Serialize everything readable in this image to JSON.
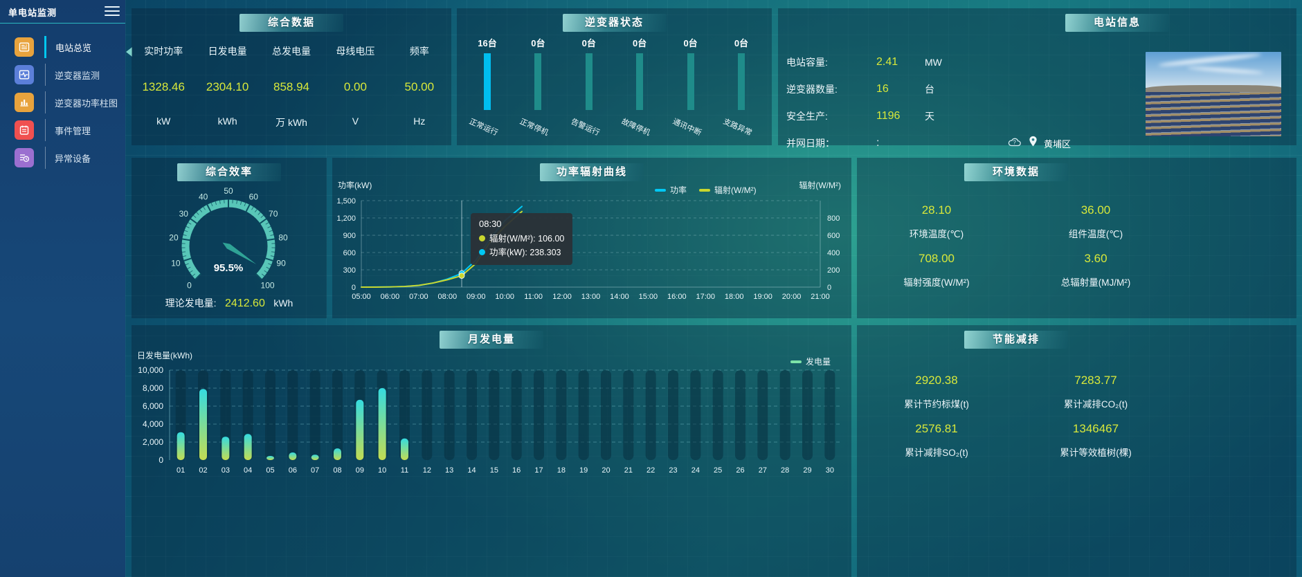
{
  "app": {
    "title": "单电站监测"
  },
  "colors": {
    "accent_yellow": "#d8e83a",
    "power_line": "#00c8f5",
    "radiation_line": "#c9d62e",
    "inverter_active_bar": "#00bef0",
    "inverter_inactive_bar": "#1f8c8a",
    "gauge_ring": "#58c6b8",
    "month_bar_top": "#35dbe0",
    "month_bar_bottom": "#c3dc52",
    "month_legend_swatch": "#7ce3a8"
  },
  "sidebar": {
    "items": [
      {
        "label": "电站总览",
        "icon": "station-overview-icon",
        "color": "#e8a33d",
        "active": true
      },
      {
        "label": "逆变器监测",
        "icon": "inverter-monitor-icon",
        "color": "#5b7fd9",
        "active": false
      },
      {
        "label": "逆变器功率柱图",
        "icon": "inverter-power-bars-icon",
        "color": "#e8a33d",
        "active": false
      },
      {
        "label": "事件管理",
        "icon": "event-management-icon",
        "color": "#f05050",
        "active": false
      },
      {
        "label": "异常设备",
        "icon": "abnormal-device-icon",
        "color": "#9b6fd0",
        "active": false
      }
    ]
  },
  "panels": {
    "summary": {
      "title": "综合数据",
      "stats": [
        {
          "label": "实时功率",
          "value": "1328.46",
          "unit": "kW"
        },
        {
          "label": "日发电量",
          "value": "2304.10",
          "unit": "kWh"
        },
        {
          "label": "总发电量",
          "value": "858.94",
          "unit": "万 kWh"
        },
        {
          "label": "母线电压",
          "value": "0.00",
          "unit": "V"
        },
        {
          "label": "频率",
          "value": "50.00",
          "unit": "Hz"
        }
      ]
    },
    "inverter_status": {
      "title": "逆变器状态"
    },
    "station_info": {
      "title": "电站信息",
      "rows": [
        {
          "label": "电站容量:",
          "value": "2.41",
          "unit": "MW",
          "muted": false
        },
        {
          "label": "逆变器数量:",
          "value": "16",
          "unit": "台",
          "muted": false
        },
        {
          "label": "安全生产:",
          "value": "1196",
          "unit": "天",
          "muted": false
        },
        {
          "label": "并网日期：",
          "value": ":",
          "unit": "",
          "muted": true
        }
      ],
      "location": "黄埔区"
    },
    "efficiency": {
      "title": "综合效率",
      "theory_label": "理论发电量:",
      "theory_value": "2412.60",
      "theory_unit": "kWh"
    },
    "power_radiation": {
      "title": "功率辐射曲线"
    },
    "environment": {
      "title": "环境数据",
      "stats": [
        {
          "value": "28.10",
          "label": "环境温度(℃)"
        },
        {
          "value": "36.00",
          "label": "组件温度(℃)"
        },
        {
          "value": "708.00",
          "label": "辐射强度(W/M²)"
        },
        {
          "value": "3.60",
          "label": "总辐射量(MJ/M²)"
        }
      ]
    },
    "monthly": {
      "title": "月发电量"
    },
    "saving": {
      "title": "节能减排",
      "stats": [
        {
          "value": "2920.38",
          "label": "累计节约标煤(t)"
        },
        {
          "value": "7283.77",
          "label": "累计减排CO₂(t)"
        },
        {
          "value": "2576.81",
          "label": "累计减排SO₂(t)"
        },
        {
          "value": "1346467",
          "label": "累计等效植树(棵)"
        }
      ]
    }
  },
  "chart_data": [
    {
      "id": "power_radiation",
      "type": "line",
      "title": "功率辐射曲线",
      "x_ticks": [
        "05:00",
        "06:00",
        "07:00",
        "08:00",
        "09:00",
        "10:00",
        "11:00",
        "12:00",
        "13:00",
        "14:00",
        "15:00",
        "16:00",
        "17:00",
        "18:00",
        "19:00",
        "20:00",
        "21:00"
      ],
      "x_hour_range": [
        5,
        21
      ],
      "left_axis": {
        "label": "功率(kW)",
        "min": 0,
        "max": 1500,
        "ticks": [
          "0",
          "300",
          "600",
          "900",
          "1,200",
          "1,500"
        ]
      },
      "right_axis": {
        "label": "辐射(W/M²)",
        "min": 0,
        "max": 800,
        "ticks": [
          "0",
          "200",
          "400",
          "600",
          "800"
        ]
      },
      "series": [
        {
          "name": "功率",
          "axis": "left",
          "color": "#00c8f5",
          "points": [
            [
              5,
              0
            ],
            [
              5.5,
              1
            ],
            [
              6,
              3
            ],
            [
              6.5,
              10
            ],
            [
              7,
              28
            ],
            [
              7.5,
              70
            ],
            [
              8,
              140
            ],
            [
              8.5,
              238.303
            ],
            [
              9,
              470
            ],
            [
              9.5,
              850
            ],
            [
              10,
              1150
            ],
            [
              10.6,
              1400
            ]
          ]
        },
        {
          "name": "辐射(W/M²)",
          "axis": "right",
          "color": "#c9d62e",
          "points": [
            [
              5,
              0
            ],
            [
              5.5,
              0
            ],
            [
              6,
              2
            ],
            [
              6.5,
              6
            ],
            [
              7,
              16
            ],
            [
              7.5,
              38
            ],
            [
              8,
              68
            ],
            [
              8.5,
              106
            ],
            [
              9,
              220
            ],
            [
              9.5,
              420
            ],
            [
              10,
              560
            ],
            [
              10.6,
              700
            ]
          ]
        }
      ],
      "pointer_hour": 8.5,
      "tooltip": {
        "time": "08:30",
        "rows": [
          {
            "color": "#c9d62e",
            "text": "辐射(W/M²): 106.00"
          },
          {
            "color": "#00c8f5",
            "text": "功率(kW): 238.303"
          }
        ]
      }
    },
    {
      "id": "monthly",
      "type": "bar",
      "title": "月发电量",
      "ylabel": "日发电量(kWh)",
      "legend": "发电量",
      "legend_color": "#7ce3a8",
      "categories": [
        "01",
        "02",
        "03",
        "04",
        "05",
        "06",
        "07",
        "08",
        "09",
        "10",
        "11",
        "12",
        "13",
        "14",
        "15",
        "16",
        "17",
        "18",
        "19",
        "20",
        "21",
        "22",
        "23",
        "24",
        "25",
        "26",
        "27",
        "28",
        "29",
        "30"
      ],
      "values": [
        3100,
        7900,
        2600,
        2900,
        460,
        850,
        600,
        1300,
        6700,
        8000,
        2400,
        0,
        0,
        0,
        0,
        0,
        0,
        0,
        0,
        0,
        0,
        0,
        0,
        0,
        0,
        0,
        0,
        0,
        0,
        0
      ],
      "ylim": [
        0,
        10000
      ],
      "yticks": [
        "0",
        "2,000",
        "4,000",
        "6,000",
        "8,000",
        "10,000"
      ]
    },
    {
      "id": "inverter_status",
      "type": "bar",
      "title": "逆变器状态",
      "categories": [
        "正常运行",
        "正常停机",
        "告警运行",
        "故障停机",
        "通讯中断",
        "支路异常"
      ],
      "values": [
        16,
        0,
        0,
        0,
        0,
        0
      ],
      "unit": "台",
      "active_index": 0
    },
    {
      "id": "efficiency_gauge",
      "type": "gauge",
      "title": "综合效率",
      "value": 95.5,
      "display": "95.5%",
      "min": 0,
      "max": 100,
      "tick_labels": [
        0,
        10,
        20,
        30,
        40,
        50,
        60,
        70,
        80,
        90,
        100
      ]
    }
  ]
}
